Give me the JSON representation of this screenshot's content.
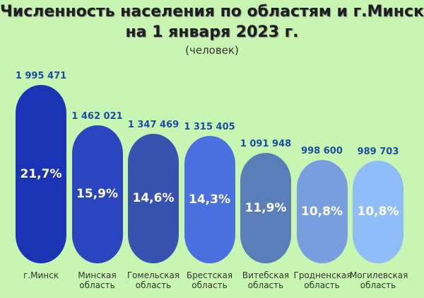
{
  "chart_data": {
    "type": "bar",
    "title": [
      "Численность населения по областям и г.Минску",
      "на 1 января 2023 г."
    ],
    "subtitle": "(человек)",
    "categories": [
      "г.Минск",
      "Минская область",
      "Гомельская область",
      "Брестская область",
      "Витебская область",
      "Гродненская область",
      "Могилевская область"
    ],
    "values": [
      1995471,
      1462021,
      1347469,
      1315405,
      1091948,
      998600,
      989703
    ],
    "value_labels": [
      "1 995 471",
      "1 462 021",
      "1 347 469",
      "1 315 405",
      "1 091 948",
      "998 600",
      "989 703"
    ],
    "shares": [
      21.7,
      15.9,
      14.6,
      14.3,
      11.9,
      10.8,
      10.8
    ],
    "share_labels": [
      "21,7%",
      "15,9%",
      "14,6%",
      "14,3%",
      "11,9%",
      "10,8%",
      "10,8%"
    ],
    "colors": [
      "#1b33b5",
      "#2a45bd",
      "#3852b0",
      "#4b70df",
      "#5a7fb8",
      "#789ee0",
      "#8ebdf7"
    ]
  }
}
